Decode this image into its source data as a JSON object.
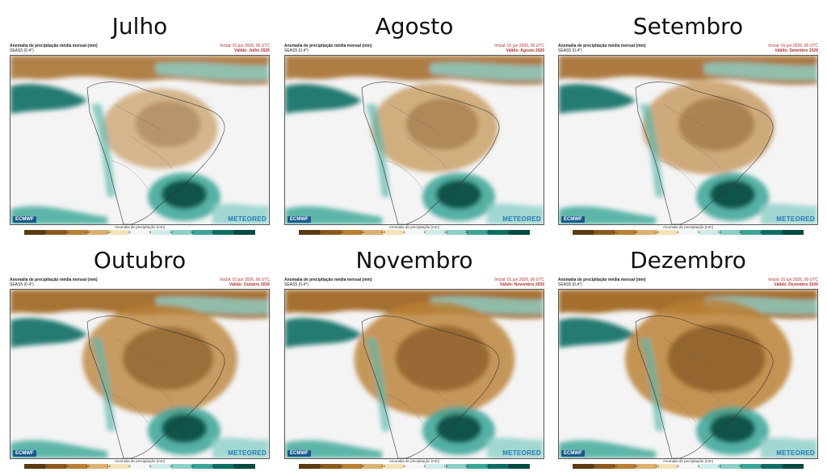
{
  "header": {
    "title": "Anomalia de precipitação média mensal (mm)",
    "model": "SEAS5 (0.4°)",
    "init": "Inicial: 01 jun 2026, 00 UTC"
  },
  "colorbar": {
    "label": "Anomalia de precipitação (mm)",
    "ticks": [
      "-90",
      "-60",
      "-30",
      "-15",
      "-5",
      "5",
      "15",
      "30",
      "60",
      "90"
    ],
    "colors": [
      "#5a3a10",
      "#8c5a1e",
      "#b98035",
      "#dcb070",
      "#f2e2b8",
      "#f5f5f5",
      "#d0ecea",
      "#8cd0c8",
      "#3aa596",
      "#0d6e64",
      "#044a40"
    ]
  },
  "branding": {
    "ecmwf": "ECMWF",
    "meteored": "METEORED"
  },
  "panels": [
    {
      "month": "Julho",
      "valid": "Válido: Julho 2026"
    },
    {
      "month": "Agosto",
      "valid": "Válido: Agosto 2026"
    },
    {
      "month": "Setembro",
      "valid": "Válido: Setembro 2026"
    },
    {
      "month": "Outubro",
      "valid": "Válido: Outubro 2026"
    },
    {
      "month": "Novembro",
      "valid": "Válido: Novembro 2026"
    },
    {
      "month": "Dezembro",
      "valid": "Válido: Dezembro 2026"
    }
  ]
}
